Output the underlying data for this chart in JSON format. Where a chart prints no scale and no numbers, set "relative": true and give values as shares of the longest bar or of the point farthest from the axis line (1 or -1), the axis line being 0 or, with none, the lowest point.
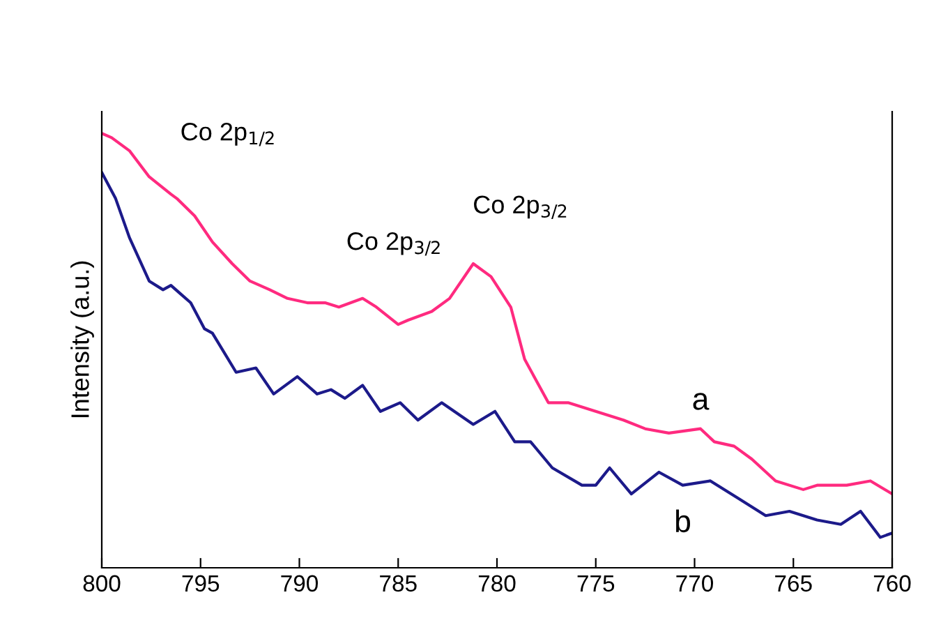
{
  "chart_data": {
    "type": "line",
    "ylabel": "Intensity (a.u.)",
    "relative": true,
    "xlim": [
      800,
      760
    ],
    "xticks": [
      800,
      795,
      790,
      785,
      780,
      775,
      770,
      765,
      760
    ],
    "series": [
      {
        "name": "a",
        "color": "#ff2a7f",
        "x": [
          800,
          799.5,
          798.6,
          797.6,
          796.5,
          796.2,
          795.3,
          794.4,
          793.4,
          792.5,
          791.5,
          790.6,
          789.6,
          788.7,
          788.0,
          786.8,
          786.1,
          785.0,
          784.5,
          783.3,
          782.4,
          781.2,
          780.3,
          779.3,
          778.6,
          777.4,
          776.4,
          775.0,
          773.6,
          772.5,
          771.3,
          769.7,
          769.0,
          768.0,
          767.1,
          765.9,
          764.5,
          763.8,
          762.3,
          761.1,
          760.0
        ],
        "values": [
          1.0,
          0.99,
          0.96,
          0.9,
          0.86,
          0.85,
          0.81,
          0.75,
          0.7,
          0.66,
          0.64,
          0.62,
          0.61,
          0.61,
          0.6,
          0.62,
          0.6,
          0.56,
          0.57,
          0.59,
          0.62,
          0.7,
          0.67,
          0.6,
          0.48,
          0.38,
          0.38,
          0.36,
          0.34,
          0.32,
          0.31,
          0.32,
          0.29,
          0.28,
          0.25,
          0.2,
          0.18,
          0.19,
          0.19,
          0.2,
          0.17
        ]
      },
      {
        "name": "b",
        "color": "#1c1a8a",
        "x": [
          800,
          799.3,
          798.6,
          797.6,
          796.9,
          796.5,
          795.5,
          794.8,
          794.4,
          793.2,
          792.2,
          791.3,
          790.1,
          789.1,
          788.4,
          787.7,
          786.8,
          785.9,
          784.9,
          784.0,
          782.8,
          781.2,
          780.1,
          779.1,
          778.3,
          777.2,
          775.7,
          775.0,
          774.3,
          773.2,
          771.8,
          770.6,
          769.2,
          767.8,
          766.4,
          765.2,
          763.8,
          762.6,
          761.6,
          760.6,
          760.0
        ],
        "values": [
          0.91,
          0.85,
          0.76,
          0.66,
          0.64,
          0.65,
          0.61,
          0.55,
          0.54,
          0.45,
          0.46,
          0.4,
          0.44,
          0.4,
          0.41,
          0.39,
          0.42,
          0.36,
          0.38,
          0.34,
          0.38,
          0.33,
          0.36,
          0.29,
          0.29,
          0.23,
          0.19,
          0.19,
          0.23,
          0.17,
          0.22,
          0.19,
          0.2,
          0.16,
          0.12,
          0.13,
          0.11,
          0.1,
          0.13,
          0.07,
          0.08
        ]
      }
    ],
    "annotations": [
      "Co 2p$_{1/2}$",
      "Co 2p$_{3/2}$",
      "Co 2p$_{3/2}$"
    ]
  }
}
